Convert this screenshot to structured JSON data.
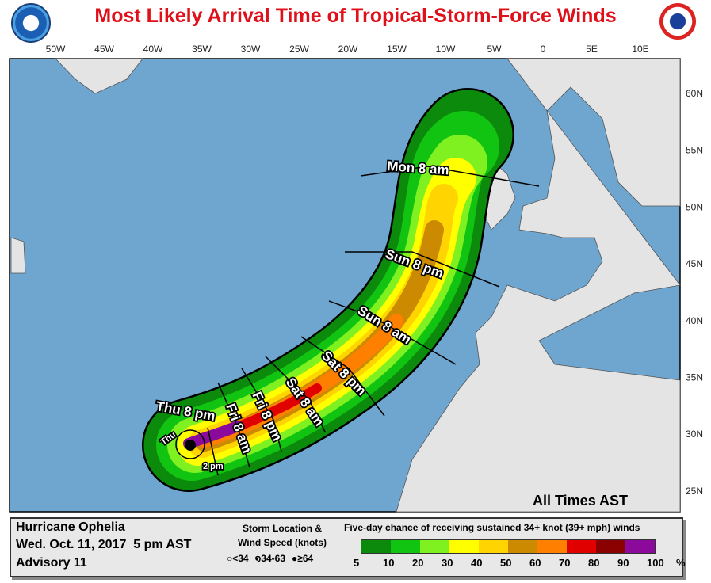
{
  "title": "Most Likely Arrival Time of Tropical-Storm-Force Winds",
  "logos": {
    "left": "NOAA",
    "right": "NATIONAL WEATHER SERVICE"
  },
  "lon_labels": [
    "50W",
    "45W",
    "40W",
    "35W",
    "30W",
    "25W",
    "20W",
    "15W",
    "10W",
    "5W",
    "0",
    "5E",
    "10E"
  ],
  "lat_labels": [
    "60N",
    "55N",
    "50N",
    "45N",
    "40N",
    "35N",
    "30N",
    "25N"
  ],
  "isochrones": [
    "Mon 8 am",
    "Sun 8 pm",
    "Sun 8 am",
    "Sat 8 pm",
    "Sat 8 am",
    "Fri 8 pm",
    "Fri 8 am",
    "Thu 8 pm",
    "Thu",
    "2 pm"
  ],
  "times_note": "All Times AST",
  "info": {
    "storm": "Hurricane Ophelia",
    "date": "Wed. Oct. 11, 2017  5 pm AST",
    "advisory": "Advisory 11"
  },
  "storm_legend": {
    "title1": "Storm Location &",
    "title2": "Wind Speed (knots)",
    "items": [
      "<34",
      "34-63",
      "≥64"
    ]
  },
  "probability_legend": {
    "title": "Five-day chance of receiving sustained 34+ knot (39+ mph) winds",
    "colors": [
      "#0b8a0b",
      "#12c412",
      "#7ff020",
      "#ffff00",
      "#ffd400",
      "#cc8a00",
      "#ff8000",
      "#e00000",
      "#8b0000",
      "#8b0a9c"
    ],
    "ticks": [
      "5",
      "10",
      "20",
      "30",
      "40",
      "50",
      "60",
      "70",
      "80",
      "90",
      "100"
    ],
    "unit": "%"
  },
  "colors": {
    "ocean": "#6fa6d0",
    "land": "#e4e4e4",
    "title": "#e0101a"
  }
}
